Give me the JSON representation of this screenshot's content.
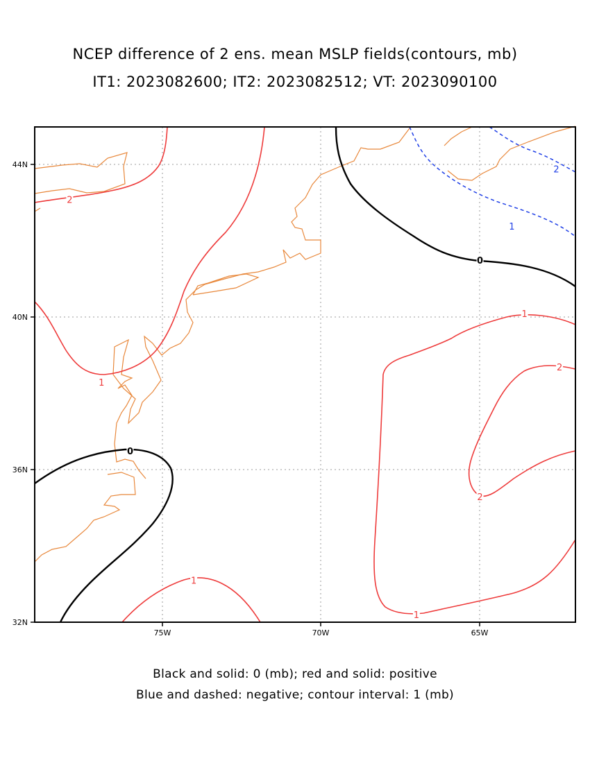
{
  "title": {
    "line1": "NCEP difference of 2 ens. mean MSLP fields(contours, mb)",
    "line2": "IT1: 2023082600; IT2: 2023082512; VT: 2023090100"
  },
  "caption": {
    "line1": "Black and solid: 0 (mb); red and solid: positive",
    "line2": "Blue and dashed: negative; contour interval: 1 (mb)"
  },
  "map": {
    "lon_range": [
      -79,
      -62
    ],
    "lat_range": [
      32,
      45
    ],
    "x_ticks": [
      {
        "lon": -75,
        "label": "75W"
      },
      {
        "lon": -70,
        "label": "70W"
      },
      {
        "lon": -65,
        "label": "65W"
      }
    ],
    "y_ticks": [
      {
        "lat": 32,
        "label": "32N"
      },
      {
        "lat": 36,
        "label": "36N"
      },
      {
        "lat": 40,
        "label": "40N"
      },
      {
        "lat": 44,
        "label": "44N"
      }
    ],
    "grid": true,
    "colors": {
      "positive": "#ee3b3b",
      "zero": "#000000",
      "negative": "#1f3fe6",
      "coast": "#e8873a",
      "grid": "#999999"
    },
    "contour_labels": [
      {
        "text": "2",
        "lon": -77.9,
        "lat": 43.1,
        "color": "#ee3b3b"
      },
      {
        "text": "1",
        "lon": -76.9,
        "lat": 38.3,
        "color": "#ee3b3b"
      },
      {
        "text": "0",
        "lon": -76.0,
        "lat": 36.5,
        "color": "#000000"
      },
      {
        "text": "1",
        "lon": -74.0,
        "lat": 33.1,
        "color": "#ee3b3b"
      },
      {
        "text": "0",
        "lon": -65.0,
        "lat": 41.5,
        "color": "#000000"
      },
      {
        "text": "2",
        "lon": -62.6,
        "lat": 43.9,
        "color": "#1f3fe6"
      },
      {
        "text": "1",
        "lon": -64.0,
        "lat": 42.4,
        "color": "#1f3fe6"
      },
      {
        "text": "1",
        "lon": -63.6,
        "lat": 40.1,
        "color": "#ee3b3b"
      },
      {
        "text": "2",
        "lon": -62.5,
        "lat": 38.7,
        "color": "#ee3b3b"
      },
      {
        "text": "2",
        "lon": -65.0,
        "lat": 35.3,
        "color": "#ee3b3b"
      },
      {
        "text": "1",
        "lon": -67.0,
        "lat": 32.2,
        "color": "#ee3b3b"
      }
    ]
  }
}
